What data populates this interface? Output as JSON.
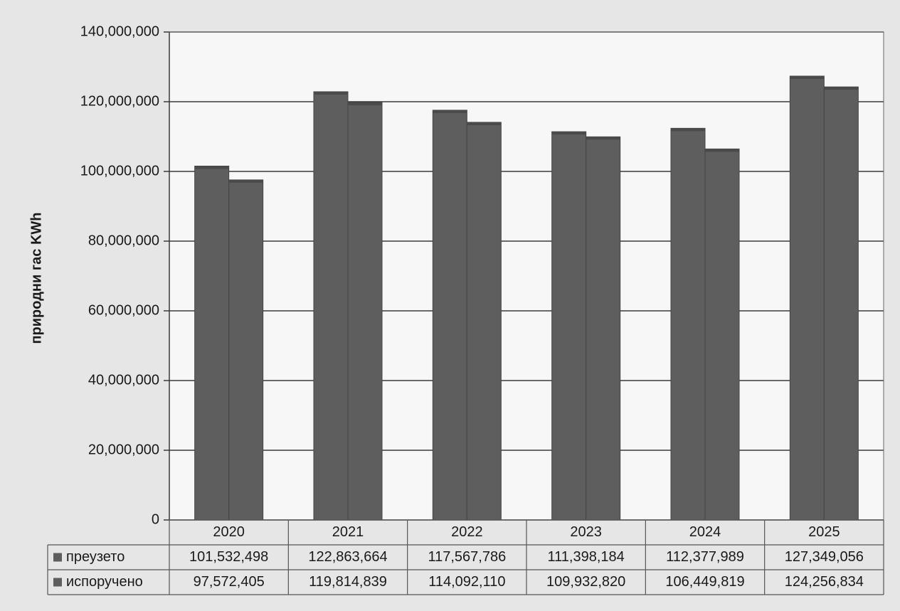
{
  "chart_data": {
    "type": "bar",
    "title": "",
    "xlabel": "",
    "ylabel": "природни гас KWh",
    "ylim": [
      0,
      140000000
    ],
    "y_ticks": [
      "0",
      "20,000,000",
      "40,000,000",
      "60,000,000",
      "80,000,000",
      "100,000,000",
      "120,000,000",
      "140,000,000"
    ],
    "grid": true,
    "legend": "data-table",
    "categories": [
      "2020",
      "2021",
      "2022",
      "2023",
      "2024",
      "2025"
    ],
    "series": [
      {
        "name": "преузето",
        "values": [
          101532498,
          122863664,
          117567786,
          111398184,
          112377989,
          127349056
        ],
        "labels": [
          "101,532,498",
          "122,863,664",
          "117,567,786",
          "111,398,184",
          "112,377,989",
          "127,349,056"
        ]
      },
      {
        "name": "испоручено",
        "values": [
          97572405,
          119814839,
          114092110,
          109932820,
          106449819,
          124256834
        ],
        "labels": [
          "97,572,405",
          "119,814,839",
          "114,092,110",
          "109,932,820",
          "106,449,819",
          "124,256,834"
        ]
      }
    ],
    "colors": {
      "bar": "#5e5e5e",
      "bar_top": "#4a4a4a",
      "plot_bg": "#f7f7f7",
      "grid": "#3a3a3a",
      "page_bg": "#e6e6e6"
    }
  }
}
